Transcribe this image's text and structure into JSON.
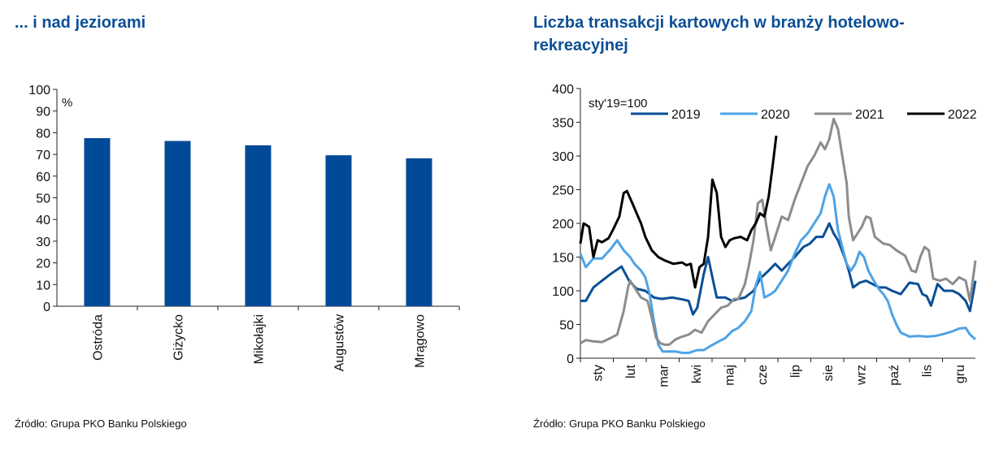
{
  "chart_data": [
    {
      "type": "bar",
      "title": "... i nad jeziorami",
      "unit_label": "%",
      "categories": [
        "Ostróda",
        "Giżycko",
        "Mikołajki",
        "Augustów",
        "Mrągowo"
      ],
      "values": [
        77.5,
        76.2,
        74.2,
        69.6,
        68.2
      ],
      "yticks": [
        "0",
        "10",
        "20",
        "30",
        "40",
        "50",
        "60",
        "70",
        "80",
        "90",
        "100"
      ],
      "ylim": [
        0,
        100
      ],
      "color": "#004a97",
      "source": "Źródło: Grupa PKO Banku Polskiego"
    },
    {
      "type": "line",
      "title": "Liczba transakcji kartowych w branży hotelowo-rekreacyjnej",
      "unit_label": "sty'19=100",
      "ylim": [
        0,
        400
      ],
      "yticks": [
        "0",
        "50",
        "100",
        "150",
        "200",
        "250",
        "300",
        "350",
        "400"
      ],
      "xlim": [
        0,
        365
      ],
      "months": [
        "sty",
        "lut",
        "mar",
        "kwi",
        "maj",
        "cze",
        "lip",
        "sie",
        "wrz",
        "paź",
        "lis",
        "gru"
      ],
      "legend_position": "top",
      "series": [
        {
          "name": "2019",
          "color": "#0b4f96",
          "points": [
            [
              0,
              85
            ],
            [
              5,
              85
            ],
            [
              12,
              105
            ],
            [
              20,
              115
            ],
            [
              28,
              125
            ],
            [
              38,
              136
            ],
            [
              45,
              115
            ],
            [
              52,
              103
            ],
            [
              60,
              100
            ],
            [
              68,
              90
            ],
            [
              75,
              88
            ],
            [
              85,
              90
            ],
            [
              95,
              87
            ],
            [
              100,
              85
            ],
            [
              104,
              65
            ],
            [
              108,
              75
            ],
            [
              114,
              125
            ],
            [
              118,
              150
            ],
            [
              122,
              120
            ],
            [
              126,
              90
            ],
            [
              134,
              90
            ],
            [
              140,
              85
            ],
            [
              146,
              88
            ],
            [
              152,
              90
            ],
            [
              160,
              100
            ],
            [
              166,
              118
            ],
            [
              174,
              130
            ],
            [
              180,
              140
            ],
            [
              186,
              130
            ],
            [
              192,
              140
            ],
            [
              198,
              150
            ],
            [
              206,
              165
            ],
            [
              212,
              170
            ],
            [
              218,
              180
            ],
            [
              224,
              180
            ],
            [
              230,
              200
            ],
            [
              234,
              185
            ],
            [
              238,
              175
            ],
            [
              244,
              150
            ],
            [
              248,
              130
            ],
            [
              252,
              105
            ],
            [
              258,
              112
            ],
            [
              264,
              115
            ],
            [
              270,
              110
            ],
            [
              276,
              105
            ],
            [
              282,
              105
            ],
            [
              288,
              100
            ],
            [
              296,
              95
            ],
            [
              304,
              112
            ],
            [
              312,
              110
            ],
            [
              316,
              95
            ],
            [
              320,
              92
            ],
            [
              324,
              78
            ],
            [
              330,
              110
            ],
            [
              336,
              100
            ],
            [
              344,
              100
            ],
            [
              350,
              95
            ],
            [
              356,
              85
            ],
            [
              360,
              70
            ],
            [
              365,
              115
            ]
          ]
        },
        {
          "name": "2020",
          "color": "#4ea3e6",
          "points": [
            [
              0,
              155
            ],
            [
              5,
              135
            ],
            [
              12,
              148
            ],
            [
              20,
              148
            ],
            [
              28,
              162
            ],
            [
              34,
              175
            ],
            [
              40,
              160
            ],
            [
              46,
              150
            ],
            [
              50,
              140
            ],
            [
              56,
              130
            ],
            [
              60,
              120
            ],
            [
              64,
              95
            ],
            [
              68,
              55
            ],
            [
              72,
              20
            ],
            [
              76,
              10
            ],
            [
              82,
              10
            ],
            [
              88,
              10
            ],
            [
              94,
              8
            ],
            [
              100,
              8
            ],
            [
              108,
              12
            ],
            [
              114,
              12
            ],
            [
              120,
              18
            ],
            [
              128,
              25
            ],
            [
              134,
              30
            ],
            [
              140,
              40
            ],
            [
              146,
              45
            ],
            [
              152,
              55
            ],
            [
              158,
              70
            ],
            [
              162,
              108
            ],
            [
              166,
              128
            ],
            [
              170,
              90
            ],
            [
              176,
              95
            ],
            [
              180,
              100
            ],
            [
              186,
              115
            ],
            [
              192,
              130
            ],
            [
              198,
              155
            ],
            [
              204,
              175
            ],
            [
              210,
              185
            ],
            [
              216,
              200
            ],
            [
              222,
              215
            ],
            [
              226,
              240
            ],
            [
              230,
              258
            ],
            [
              234,
              240
            ],
            [
              238,
              190
            ],
            [
              242,
              165
            ],
            [
              246,
              140
            ],
            [
              250,
              130
            ],
            [
              254,
              140
            ],
            [
              258,
              158
            ],
            [
              262,
              150
            ],
            [
              266,
              130
            ],
            [
              270,
              118
            ],
            [
              276,
              102
            ],
            [
              280,
              95
            ],
            [
              284,
              85
            ],
            [
              288,
              65
            ],
            [
              292,
              50
            ],
            [
              296,
              38
            ],
            [
              304,
              32
            ],
            [
              312,
              33
            ],
            [
              320,
              32
            ],
            [
              328,
              33
            ],
            [
              336,
              36
            ],
            [
              344,
              40
            ],
            [
              350,
              44
            ],
            [
              356,
              45
            ],
            [
              360,
              35
            ],
            [
              365,
              28
            ]
          ]
        },
        {
          "name": "2021",
          "color": "#8c8c8c",
          "points": [
            [
              0,
              22
            ],
            [
              5,
              27
            ],
            [
              12,
              25
            ],
            [
              20,
              24
            ],
            [
              28,
              30
            ],
            [
              34,
              35
            ],
            [
              40,
              70
            ],
            [
              44,
              105
            ],
            [
              46,
              115
            ],
            [
              50,
              105
            ],
            [
              56,
              90
            ],
            [
              62,
              85
            ],
            [
              66,
              60
            ],
            [
              70,
              30
            ],
            [
              74,
              22
            ],
            [
              78,
              20
            ],
            [
              82,
              20
            ],
            [
              88,
              28
            ],
            [
              94,
              32
            ],
            [
              100,
              35
            ],
            [
              106,
              42
            ],
            [
              112,
              38
            ],
            [
              118,
              55
            ],
            [
              124,
              65
            ],
            [
              130,
              75
            ],
            [
              136,
              78
            ],
            [
              142,
              88
            ],
            [
              146,
              88
            ],
            [
              152,
              110
            ],
            [
              156,
              140
            ],
            [
              160,
              175
            ],
            [
              164,
              230
            ],
            [
              168,
              235
            ],
            [
              172,
              195
            ],
            [
              176,
              160
            ],
            [
              180,
              180
            ],
            [
              186,
              210
            ],
            [
              192,
              205
            ],
            [
              198,
              235
            ],
            [
              204,
              260
            ],
            [
              210,
              285
            ],
            [
              216,
              300
            ],
            [
              222,
              320
            ],
            [
              226,
              310
            ],
            [
              230,
              325
            ],
            [
              234,
              355
            ],
            [
              238,
              340
            ],
            [
              242,
              300
            ],
            [
              246,
              260
            ],
            [
              248,
              210
            ],
            [
              252,
              175
            ],
            [
              256,
              185
            ],
            [
              260,
              195
            ],
            [
              264,
              210
            ],
            [
              268,
              208
            ],
            [
              272,
              180
            ],
            [
              276,
              175
            ],
            [
              280,
              170
            ],
            [
              286,
              168
            ],
            [
              292,
              160
            ],
            [
              300,
              152
            ],
            [
              306,
              130
            ],
            [
              310,
              128
            ],
            [
              314,
              150
            ],
            [
              318,
              165
            ],
            [
              322,
              160
            ],
            [
              326,
              118
            ],
            [
              332,
              115
            ],
            [
              338,
              118
            ],
            [
              344,
              110
            ],
            [
              350,
              120
            ],
            [
              356,
              115
            ],
            [
              360,
              85
            ],
            [
              365,
              145
            ]
          ]
        },
        {
          "name": "2022",
          "color": "#000000",
          "points": [
            [
              0,
              170
            ],
            [
              3,
              200
            ],
            [
              8,
              195
            ],
            [
              12,
              150
            ],
            [
              16,
              175
            ],
            [
              20,
              172
            ],
            [
              26,
              178
            ],
            [
              30,
              190
            ],
            [
              36,
              210
            ],
            [
              40,
              245
            ],
            [
              43,
              248
            ],
            [
              48,
              230
            ],
            [
              52,
              215
            ],
            [
              56,
              200
            ],
            [
              60,
              180
            ],
            [
              66,
              160
            ],
            [
              72,
              150
            ],
            [
              78,
              145
            ],
            [
              86,
              140
            ],
            [
              94,
              142
            ],
            [
              98,
              138
            ],
            [
              102,
              140
            ],
            [
              106,
              105
            ],
            [
              110,
              135
            ],
            [
              114,
              140
            ],
            [
              118,
              180
            ],
            [
              122,
              265
            ],
            [
              126,
              245
            ],
            [
              130,
              180
            ],
            [
              134,
              165
            ],
            [
              138,
              175
            ],
            [
              142,
              178
            ],
            [
              148,
              180
            ],
            [
              154,
              175
            ],
            [
              158,
              190
            ],
            [
              162,
              200
            ],
            [
              166,
              215
            ],
            [
              170,
              210
            ],
            [
              174,
              240
            ],
            [
              178,
              290
            ],
            [
              181,
              330
            ]
          ]
        }
      ],
      "source": "Źródło: Grupa PKO Banku Polskiego"
    }
  ]
}
